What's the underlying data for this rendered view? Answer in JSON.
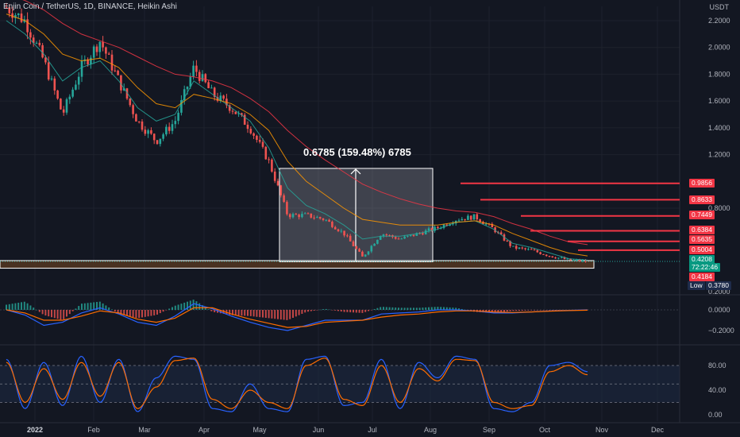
{
  "header": {
    "symbol_text": "Enjin Coin / TetherUS, 1D, BINANCE, Heikin Ashi",
    "currency": "USDT"
  },
  "colors": {
    "background": "#131722",
    "bull": "#26a69a",
    "bear": "#ef5350",
    "level_lines": "#f23645",
    "zone_fill": "#5c3b22",
    "measure_box": "#ffffff",
    "macd": "#2962ff",
    "signal": "#ff6d00",
    "stoch_k": "#2962ff",
    "stoch_d": "#ff6d00",
    "stoch_band": "#1e2a44"
  },
  "measure": {
    "label": "0.6785 (159.48%) 6785"
  },
  "price_tags": [
    {
      "text": "0.9856",
      "style": "red"
    },
    {
      "text": "0.8633",
      "style": "red"
    },
    {
      "text": "0.7449",
      "style": "red"
    },
    {
      "text": "0.6384",
      "style": "red"
    },
    {
      "text": "0.5635",
      "style": "red"
    },
    {
      "text": "0.5004",
      "style": "red"
    },
    {
      "text": "0.4208",
      "style": "green"
    },
    {
      "text": "72:22:46",
      "style": "green"
    },
    {
      "text": "0.4184",
      "style": "red"
    },
    {
      "text": "Low",
      "style": "low"
    },
    {
      "text": "0.3780",
      "style": "low"
    }
  ],
  "chart_data": [
    {
      "type": "candlestick",
      "title": "Enjin Coin / TetherUS, 1D, BINANCE, Heikin Ashi",
      "chart_style": "Heikin Ashi",
      "ylabel": "USDT",
      "ylim": [
        0.2,
        2.3
      ],
      "y_ticks": [
        "2.2000",
        "2.0000",
        "1.8000",
        "1.6000",
        "1.4000",
        "1.2000",
        "0.8000",
        "0.2000"
      ],
      "x_ticks": [
        "2022",
        "Feb",
        "Mar",
        "Apr",
        "May",
        "Jun",
        "Jul",
        "Aug",
        "Sep",
        "Oct",
        "Nov",
        "Dec"
      ],
      "x": [
        "2022-01-01",
        "2022-01-10",
        "2022-01-20",
        "2022-01-28",
        "2022-02-07",
        "2022-02-15",
        "2022-02-25",
        "2022-03-07",
        "2022-03-15",
        "2022-03-25",
        "2022-04-02",
        "2022-04-10",
        "2022-04-20",
        "2022-05-01",
        "2022-05-08",
        "2022-05-12",
        "2022-05-20",
        "2022-06-01",
        "2022-06-10",
        "2022-06-18",
        "2022-06-25",
        "2022-07-05",
        "2022-07-15",
        "2022-07-25",
        "2022-08-05",
        "2022-08-12",
        "2022-08-20",
        "2022-09-01",
        "2022-09-15",
        "2022-10-01",
        "2022-10-15",
        "2022-10-24"
      ],
      "close": [
        2.3,
        2.2,
        1.9,
        1.5,
        1.85,
        2.05,
        1.75,
        1.45,
        1.3,
        1.45,
        1.85,
        1.65,
        1.55,
        1.4,
        1.15,
        0.75,
        0.75,
        0.72,
        0.62,
        0.45,
        0.62,
        0.58,
        0.62,
        0.66,
        0.72,
        0.74,
        0.65,
        0.52,
        0.5,
        0.46,
        0.43,
        0.42
      ],
      "overlays": [
        {
          "name": "",
          "color": "#26a69a",
          "values": [
            2.2,
            2.1,
            1.95,
            1.75,
            1.85,
            1.9,
            1.75,
            1.55,
            1.45,
            1.5,
            1.75,
            1.65,
            1.55,
            1.45,
            1.25,
            0.95,
            0.82,
            0.76,
            0.68,
            0.58,
            0.6,
            0.6,
            0.62,
            0.65,
            0.7,
            0.71,
            0.65,
            0.55,
            0.52,
            0.48,
            0.44,
            0.43
          ]
        },
        {
          "name": "",
          "color": "#ff9800",
          "values": [
            2.25,
            2.2,
            2.1,
            1.95,
            1.9,
            1.92,
            1.85,
            1.7,
            1.58,
            1.55,
            1.65,
            1.62,
            1.58,
            1.5,
            1.38,
            1.15,
            1.0,
            0.9,
            0.8,
            0.72,
            0.7,
            0.68,
            0.68,
            0.68,
            0.7,
            0.71,
            0.68,
            0.62,
            0.57,
            0.52,
            0.48,
            0.46
          ]
        },
        {
          "name": "",
          "color": "#f23645",
          "values": [
            2.4,
            2.35,
            2.28,
            2.18,
            2.1,
            2.05,
            2.0,
            1.93,
            1.86,
            1.8,
            1.78,
            1.75,
            1.7,
            1.62,
            1.52,
            1.38,
            1.26,
            1.16,
            1.07,
            0.98,
            0.92,
            0.87,
            0.83,
            0.8,
            0.78,
            0.77,
            0.74,
            0.69,
            0.65,
            0.6,
            0.56,
            0.54
          ]
        }
      ],
      "horizontal_levels": [
        0.9856,
        0.8633,
        0.7449,
        0.6384,
        0.5635,
        0.5004
      ],
      "current_price": 0.4208,
      "countdown": "72:22:46",
      "last_level": 0.4184,
      "low": 0.378,
      "measure": {
        "from_price": 0.4184,
        "to_price": 1.0969,
        "change": 0.6785,
        "change_pct": 159.48
      },
      "support_zone": [
        0.378,
        0.4208
      ]
    },
    {
      "type": "line",
      "title": "",
      "ylim": [
        -0.28,
        0.12
      ],
      "y_ticks": [
        "0.0000",
        "−0.2000"
      ],
      "histogram": [
        0.05,
        0.08,
        -0.05,
        -0.1,
        0.06,
        0.08,
        -0.04,
        -0.08,
        -0.05,
        0.04,
        0.1,
        -0.02,
        -0.05,
        -0.06,
        -0.08,
        -0.1,
        -0.02,
        0.01,
        -0.02,
        -0.03,
        0.03,
        0.02,
        0.02,
        0.03,
        0.02,
        -0.02,
        -0.03,
        -0.01,
        -0.005,
        -0.002,
        -0.002,
        0.001
      ],
      "series": [
        {
          "name": "",
          "color": "#2962ff",
          "values": [
            0.0,
            -0.05,
            -0.15,
            -0.12,
            -0.03,
            0.02,
            -0.04,
            -0.12,
            -0.15,
            -0.06,
            0.06,
            0.01,
            -0.06,
            -0.12,
            -0.17,
            -0.2,
            -0.15,
            -0.1,
            -0.1,
            -0.1,
            -0.04,
            -0.03,
            -0.02,
            0.0,
            0.0,
            -0.01,
            -0.03,
            -0.03,
            -0.02,
            -0.01,
            -0.005,
            0.0
          ]
        },
        {
          "name": "",
          "color": "#ff6d00",
          "values": [
            0.0,
            -0.03,
            -0.1,
            -0.1,
            -0.06,
            -0.01,
            -0.03,
            -0.09,
            -0.12,
            -0.08,
            0.02,
            0.02,
            -0.04,
            -0.09,
            -0.13,
            -0.17,
            -0.16,
            -0.12,
            -0.11,
            -0.1,
            -0.07,
            -0.05,
            -0.04,
            -0.02,
            -0.01,
            -0.01,
            -0.02,
            -0.025,
            -0.02,
            -0.012,
            -0.007,
            -0.003
          ]
        }
      ]
    },
    {
      "type": "line",
      "title": "",
      "ylim": [
        0,
        100
      ],
      "y_ticks": [
        "80.00",
        "40.00",
        "0.00"
      ],
      "band": [
        20,
        80
      ],
      "series": [
        {
          "name": "",
          "color": "#2962ff",
          "values": [
            90,
            10,
            85,
            15,
            95,
            20,
            90,
            5,
            60,
            95,
            90,
            10,
            5,
            50,
            10,
            5,
            90,
            95,
            15,
            20,
            90,
            10,
            85,
            60,
            95,
            90,
            10,
            5,
            20,
            80,
            85,
            70
          ]
        },
        {
          "name": "",
          "color": "#ff6d00",
          "values": [
            85,
            20,
            75,
            25,
            85,
            30,
            85,
            10,
            45,
            88,
            92,
            25,
            10,
            40,
            20,
            10,
            80,
            92,
            25,
            15,
            80,
            20,
            75,
            55,
            90,
            88,
            20,
            10,
            15,
            70,
            80,
            65
          ]
        }
      ]
    }
  ]
}
